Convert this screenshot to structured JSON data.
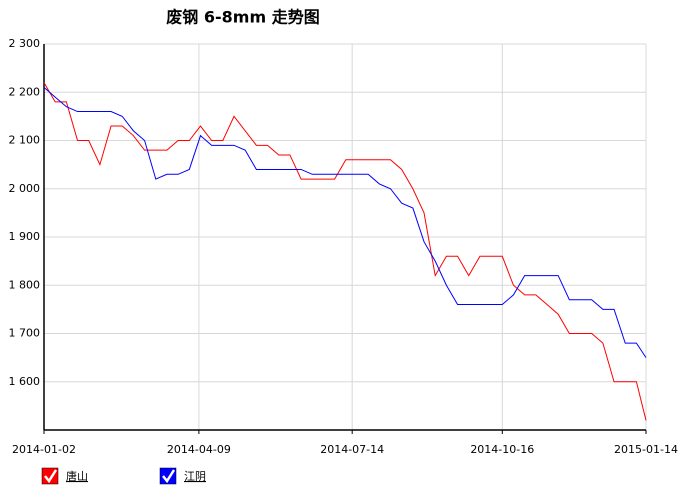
{
  "chart_data": {
    "type": "line",
    "title": "废钢 6-8mm 走势图",
    "x": [
      "2014-01-02",
      "2014-01-09",
      "2014-01-16",
      "2014-01-23",
      "2014-01-30",
      "2014-02-06",
      "2014-02-13",
      "2014-02-20",
      "2014-02-27",
      "2014-03-06",
      "2014-03-13",
      "2014-03-20",
      "2014-03-27",
      "2014-04-03",
      "2014-04-10",
      "2014-04-17",
      "2014-04-24",
      "2014-05-01",
      "2014-05-08",
      "2014-05-15",
      "2014-05-22",
      "2014-05-29",
      "2014-06-05",
      "2014-06-12",
      "2014-06-19",
      "2014-06-26",
      "2014-07-03",
      "2014-07-10",
      "2014-07-17",
      "2014-07-24",
      "2014-07-31",
      "2014-08-07",
      "2014-08-14",
      "2014-08-21",
      "2014-08-28",
      "2014-09-04",
      "2014-09-11",
      "2014-09-18",
      "2014-09-25",
      "2014-10-02",
      "2014-10-09",
      "2014-10-16",
      "2014-10-23",
      "2014-10-30",
      "2014-11-06",
      "2014-11-13",
      "2014-11-20",
      "2014-11-27",
      "2014-12-04",
      "2014-12-11",
      "2014-12-18",
      "2014-12-25",
      "2015-01-01",
      "2015-01-08",
      "2015-01-14"
    ],
    "series": [
      {
        "name": "唐山",
        "color": "#ff0000",
        "values": [
          2220,
          2180,
          2180,
          2100,
          2100,
          2050,
          2130,
          2130,
          2110,
          2080,
          2080,
          2080,
          2100,
          2100,
          2130,
          2100,
          2100,
          2150,
          2120,
          2090,
          2090,
          2070,
          2070,
          2020,
          2020,
          2020,
          2020,
          2060,
          2060,
          2060,
          2060,
          2060,
          2040,
          2000,
          1950,
          1820,
          1860,
          1860,
          1820,
          1860,
          1860,
          1860,
          1800,
          1780,
          1780,
          1760,
          1740,
          1700,
          1700,
          1700,
          1680,
          1600,
          1600,
          1600,
          1520
        ]
      },
      {
        "name": "江阴",
        "color": "#0000ff",
        "values": [
          2210,
          2190,
          2170,
          2160,
          2160,
          2160,
          2160,
          2150,
          2120,
          2100,
          2020,
          2030,
          2030,
          2040,
          2110,
          2090,
          2090,
          2090,
          2080,
          2040,
          2040,
          2040,
          2040,
          2040,
          2030,
          2030,
          2030,
          2030,
          2030,
          2030,
          2010,
          2000,
          1970,
          1960,
          1890,
          1850,
          1800,
          1760,
          1760,
          1760,
          1760,
          1760,
          1780,
          1820,
          1820,
          1820,
          1820,
          1770,
          1770,
          1770,
          1750,
          1750,
          1680,
          1680,
          1650
        ]
      }
    ],
    "xlim": [
      "2014-01-02",
      "2015-01-14"
    ],
    "xticks": [
      "2014-01-02",
      "2014-04-09",
      "2014-07-14",
      "2014-10-16",
      "2015-01-14"
    ],
    "ylim": [
      1500,
      2300
    ],
    "yticks": [
      {
        "value": 1600,
        "label": "1 600"
      },
      {
        "value": 1700,
        "label": "1 700"
      },
      {
        "value": 1800,
        "label": "1 800"
      },
      {
        "value": 1900,
        "label": "1 900"
      },
      {
        "value": 2000,
        "label": "2 000"
      },
      {
        "value": 2100,
        "label": "2 100"
      },
      {
        "value": 2200,
        "label": "2 200"
      },
      {
        "value": 2300,
        "label": "2 300"
      }
    ],
    "grid": true
  }
}
